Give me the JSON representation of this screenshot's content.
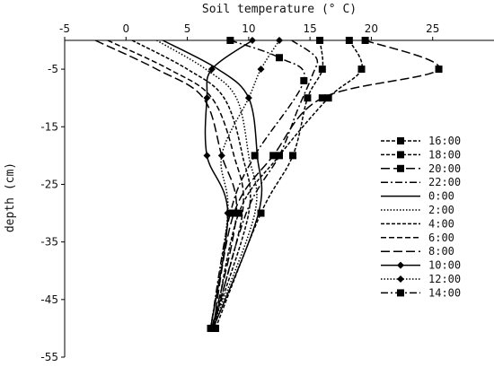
{
  "chart_data": {
    "type": "line",
    "xlabel": "Soil temperature (° C)",
    "ylabel": "depth (cm)",
    "xlim": [
      -5,
      30
    ],
    "ylim": [
      -55,
      0
    ],
    "xticks": [
      -5,
      0,
      5,
      10,
      15,
      20,
      25
    ],
    "yticks": [
      -5,
      -15,
      -25,
      -35,
      -45,
      -55
    ],
    "grid": false,
    "legend_position": "right",
    "series": [
      {
        "name": "16:00",
        "style": "short-dash",
        "marker": "square",
        "color": "#000000",
        "points": [
          [
            15.8,
            0
          ],
          [
            16.0,
            -5
          ],
          [
            14.8,
            -10
          ],
          [
            13.6,
            -20
          ],
          [
            11.0,
            -30
          ],
          [
            7.3,
            -50
          ]
        ]
      },
      {
        "name": "18:00",
        "style": "short-dash",
        "marker": "square",
        "color": "#000000",
        "points": [
          [
            18.2,
            0
          ],
          [
            19.2,
            -5
          ],
          [
            16.5,
            -10
          ],
          [
            12.5,
            -20
          ],
          [
            9.2,
            -30
          ],
          [
            7.2,
            -50
          ]
        ]
      },
      {
        "name": "20:00",
        "style": "long-dash",
        "marker": "square",
        "color": "#000000",
        "points": [
          [
            19.5,
            0
          ],
          [
            25.5,
            -5
          ],
          [
            16.0,
            -10
          ],
          [
            12.0,
            -20
          ],
          [
            8.8,
            -30
          ],
          [
            7.1,
            -50
          ]
        ]
      },
      {
        "name": "22:00",
        "style": "dash-dot",
        "marker": "none",
        "color": "#000000",
        "points": [
          [
            13.5,
            0
          ],
          [
            15.5,
            -3
          ],
          [
            15.2,
            -6
          ],
          [
            14.0,
            -12
          ],
          [
            12.5,
            -20
          ],
          [
            9.8,
            -30
          ],
          [
            7.1,
            -50
          ]
        ]
      },
      {
        "name": "0:00",
        "style": "solid",
        "marker": "none",
        "color": "#000000",
        "points": [
          [
            3.0,
            0
          ],
          [
            7.5,
            -5
          ],
          [
            10.0,
            -10
          ],
          [
            10.7,
            -20
          ],
          [
            10.8,
            -30
          ],
          [
            7.1,
            -50
          ]
        ]
      },
      {
        "name": "2:00",
        "style": "dotted",
        "marker": "none",
        "color": "#000000",
        "points": [
          [
            2.5,
            0
          ],
          [
            6.5,
            -5
          ],
          [
            9.0,
            -10
          ],
          [
            10.0,
            -20
          ],
          [
            10.5,
            -30
          ],
          [
            7.0,
            -50
          ]
        ]
      },
      {
        "name": "4:00",
        "style": "short-dash",
        "marker": "none",
        "color": "#000000",
        "points": [
          [
            0.5,
            0
          ],
          [
            5.0,
            -5
          ],
          [
            8.0,
            -10
          ],
          [
            9.5,
            -20
          ],
          [
            10.0,
            -30
          ],
          [
            7.0,
            -50
          ]
        ]
      },
      {
        "name": "6:00",
        "style": "dash",
        "marker": "none",
        "color": "#000000",
        "points": [
          [
            -1.5,
            0
          ],
          [
            3.5,
            -5
          ],
          [
            7.0,
            -10
          ],
          [
            8.8,
            -20
          ],
          [
            9.5,
            -30
          ],
          [
            7.0,
            -50
          ]
        ]
      },
      {
        "name": "8:00",
        "style": "long-dash",
        "marker": "none",
        "color": "#000000",
        "points": [
          [
            -2.5,
            0
          ],
          [
            2.5,
            -5
          ],
          [
            6.3,
            -10
          ],
          [
            7.8,
            -20
          ],
          [
            9.0,
            -30
          ],
          [
            7.0,
            -50
          ]
        ]
      },
      {
        "name": "10:00",
        "style": "solid",
        "marker": "diamond",
        "color": "#000000",
        "points": [
          [
            10.3,
            0
          ],
          [
            7.0,
            -5
          ],
          [
            6.6,
            -10
          ],
          [
            6.6,
            -20
          ],
          [
            8.3,
            -30
          ],
          [
            6.9,
            -50
          ]
        ]
      },
      {
        "name": "12:00",
        "style": "dotted",
        "marker": "diamond",
        "color": "#000000",
        "points": [
          [
            12.5,
            0
          ],
          [
            11.0,
            -5
          ],
          [
            10.0,
            -10
          ],
          [
            7.8,
            -20
          ],
          [
            8.3,
            -30
          ],
          [
            6.9,
            -50
          ]
        ]
      },
      {
        "name": "14:00",
        "style": "dash-dot",
        "marker": "square",
        "color": "#000000",
        "points": [
          [
            8.5,
            0
          ],
          [
            12.5,
            -3
          ],
          [
            14.5,
            -7
          ],
          [
            10.5,
            -20
          ],
          [
            8.5,
            -30
          ],
          [
            6.9,
            -50
          ]
        ]
      }
    ]
  }
}
